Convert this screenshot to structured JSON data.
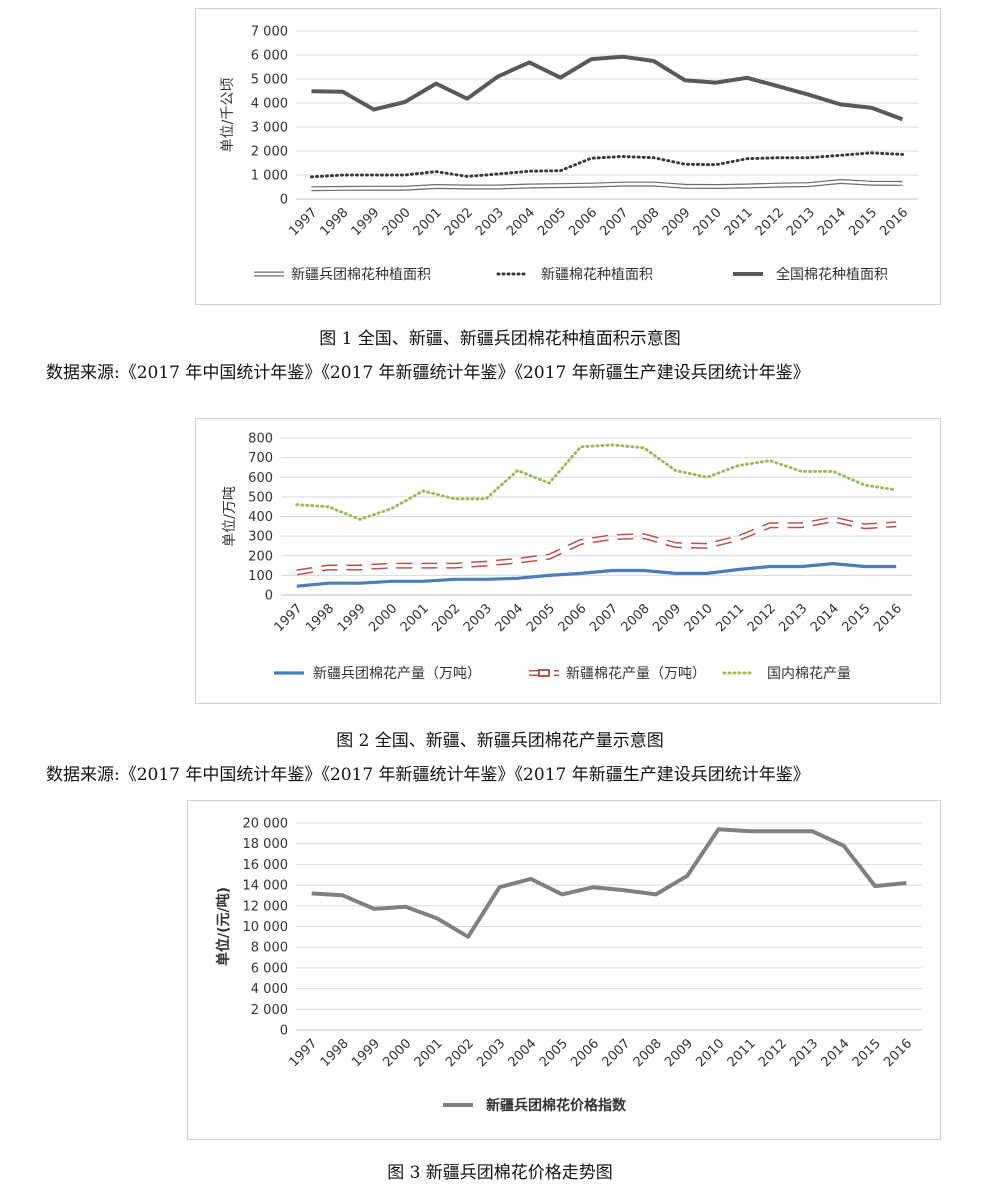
{
  "figures": [
    {
      "caption": "图 1  全国、新疆、新疆兵团棉花种植面积示意图",
      "source": "数据来源:《2017 年中国统计年鉴》《2017 年新疆统计年鉴》《2017 年新疆生产建设兵团统计年鉴》"
    },
    {
      "caption": "图 2  全国、新疆、新疆兵团棉花产量示意图",
      "source": "数据来源:《2017 年中国统计年鉴》《2017 年新疆统计年鉴》《2017 年新疆生产建设兵团统计年鉴》"
    },
    {
      "caption": "图 3  新疆兵团棉花价格走势图"
    }
  ],
  "chart_data": [
    {
      "type": "line",
      "ylabel": "单位/千公顷",
      "ylim": [
        0,
        7000
      ],
      "yticks": [
        0,
        1000,
        2000,
        3000,
        4000,
        5000,
        6000,
        7000
      ],
      "ytick_labels": [
        "0",
        "1 000",
        "2 000",
        "3 000",
        "4 000",
        "5 000",
        "6 000",
        "7 000"
      ],
      "grid": true,
      "legend": "bottom",
      "categories": [
        "1997",
        "1998",
        "1999",
        "2000",
        "2001",
        "2002",
        "2003",
        "2004",
        "2005",
        "2006",
        "2007",
        "2008",
        "2009",
        "2010",
        "2011",
        "2012",
        "2013",
        "2014",
        "2015",
        "2016"
      ],
      "series": [
        {
          "name": "新疆兵团棉花种植面积",
          "style": "hollow",
          "color": "#6b6b6b",
          "values": [
            430,
            440,
            450,
            450,
            520,
            500,
            500,
            540,
            560,
            580,
            620,
            620,
            530,
            520,
            540,
            580,
            600,
            730,
            660,
            650
          ]
        },
        {
          "name": "新疆棉花种植面积",
          "style": "dotted",
          "color": "#3a3a3a",
          "values": [
            920,
            1000,
            1000,
            1000,
            1140,
            940,
            1040,
            1160,
            1180,
            1700,
            1770,
            1720,
            1450,
            1430,
            1680,
            1720,
            1720,
            1820,
            1920,
            1860
          ]
        },
        {
          "name": "全国棉花种植面积",
          "style": "thick",
          "color": "#595959",
          "values": [
            4490,
            4470,
            3730,
            4040,
            4810,
            4180,
            5110,
            5690,
            5060,
            5830,
            5930,
            5750,
            4950,
            4850,
            5050,
            4700,
            4340,
            3940,
            3800,
            3320
          ]
        }
      ]
    },
    {
      "type": "line",
      "ylabel": "单位/万吨",
      "ylim": [
        0,
        800
      ],
      "yticks": [
        0,
        100,
        200,
        300,
        400,
        500,
        600,
        700,
        800
      ],
      "ytick_labels": [
        "0",
        "100",
        "200",
        "300",
        "400",
        "500",
        "600",
        "700",
        "800"
      ],
      "grid": true,
      "legend": "bottom",
      "categories": [
        "1997",
        "1998",
        "1999",
        "2000",
        "2001",
        "2002",
        "2003",
        "2004",
        "2005",
        "2006",
        "2007",
        "2008",
        "2009",
        "2010",
        "2011",
        "2012",
        "2013",
        "2014",
        "2015",
        "2016"
      ],
      "series": [
        {
          "name": "新疆兵团棉花产量（万吨）",
          "style": "solid",
          "color": "#4a7ebb",
          "values": [
            45,
            60,
            60,
            70,
            70,
            80,
            80,
            85,
            100,
            110,
            125,
            125,
            110,
            110,
            130,
            145,
            145,
            160,
            145,
            145
          ]
        },
        {
          "name": "新疆棉花产量（万吨）",
          "style": "dashed-hollow",
          "color": "#c0504d",
          "values": [
            115,
            140,
            140,
            150,
            150,
            150,
            160,
            175,
            195,
            270,
            295,
            300,
            255,
            250,
            290,
            355,
            355,
            385,
            350,
            360
          ]
        },
        {
          "name": "国内棉花产量",
          "style": "dotted",
          "color": "#9bbb59",
          "values": [
            460,
            450,
            385,
            440,
            530,
            490,
            490,
            635,
            570,
            755,
            765,
            750,
            635,
            600,
            660,
            685,
            630,
            630,
            560,
            535
          ]
        }
      ]
    },
    {
      "type": "line",
      "ylabel": "单位/(元/吨)",
      "ylim": [
        0,
        20000
      ],
      "yticks": [
        0,
        2000,
        4000,
        6000,
        8000,
        10000,
        12000,
        14000,
        16000,
        18000,
        20000
      ],
      "ytick_labels": [
        "0",
        "2 000",
        "4 000",
        "6 000",
        "8 000",
        "10 000",
        "12 000",
        "14 000",
        "16 000",
        "18 000",
        "20 000"
      ],
      "grid": true,
      "legend": "bottom",
      "categories": [
        "1997",
        "1998",
        "1999",
        "2000",
        "2001",
        "2002",
        "2003",
        "2004",
        "2005",
        "2006",
        "2007",
        "2008",
        "2009",
        "2010",
        "2011",
        "2012",
        "2013",
        "2014",
        "2015",
        "2016"
      ],
      "series": [
        {
          "name": "新疆兵团棉花价格指数",
          "style": "thick",
          "color": "#808080",
          "values": [
            13200,
            13000,
            11700,
            11900,
            10800,
            9000,
            13800,
            14600,
            13100,
            13800,
            13500,
            13100,
            14900,
            19400,
            19200,
            19200,
            19200,
            17800,
            13900,
            14200
          ]
        }
      ]
    }
  ]
}
